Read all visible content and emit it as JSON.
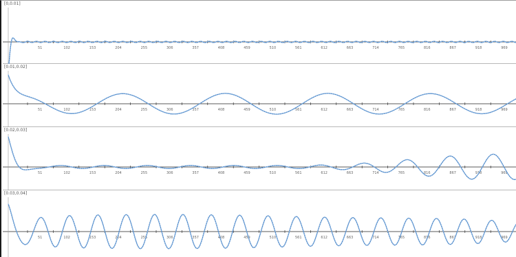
{
  "colors": {
    "signal": "#3f7fc4",
    "marker": "#8ab3e0",
    "axis": "#222222",
    "panel_divider": "#b8b8b8"
  },
  "x_ticks": [
    "51",
    "102",
    "153",
    "204",
    "255",
    "306",
    "357",
    "408",
    "459",
    "510",
    "561",
    "612",
    "663",
    "714",
    "765",
    "816",
    "867",
    "918",
    "969"
  ],
  "panels": [
    {
      "label": "[0,0.01]"
    },
    {
      "label": "[0.01,0.02]"
    },
    {
      "label": "[0.02,0.03]"
    },
    {
      "label": "[0.03,0.04]"
    }
  ],
  "chart_data": [
    {
      "type": "line",
      "ylabel": "",
      "xlabel": "",
      "xlim": [
        0,
        1000
      ],
      "ylim": [
        -1,
        1
      ],
      "decay_start": 1.0,
      "components": [
        [
          0.02,
          0.02,
          0.0
        ]
      ],
      "tail": 0.0
    },
    {
      "type": "line",
      "ylabel": "",
      "xlabel": "",
      "xlim": [
        0,
        1000
      ],
      "ylim": [
        -1,
        1
      ],
      "decay_start": 1.0,
      "components": [
        [
          0.2,
          0.043,
          0.5
        ],
        [
          0.16,
          0.041,
          1.3
        ]
      ],
      "tail": 0.0
    },
    {
      "type": "line",
      "ylabel": "",
      "xlabel": "",
      "xlim": [
        0,
        1000
      ],
      "ylim": [
        -1,
        1
      ],
      "decay_start": 1.0,
      "components": [
        [
          0.05,
          0.1,
          0.2
        ]
      ],
      "tail": 0.45
    },
    {
      "type": "line",
      "ylabel": "",
      "xlabel": "",
      "xlim": [
        0,
        1000
      ],
      "ylim": [
        -1,
        1
      ],
      "decay_start": 1.0,
      "components": [
        [
          0.3,
          0.155,
          0.0
        ],
        [
          0.32,
          0.15,
          1.1
        ]
      ],
      "tail": 0.35
    }
  ]
}
